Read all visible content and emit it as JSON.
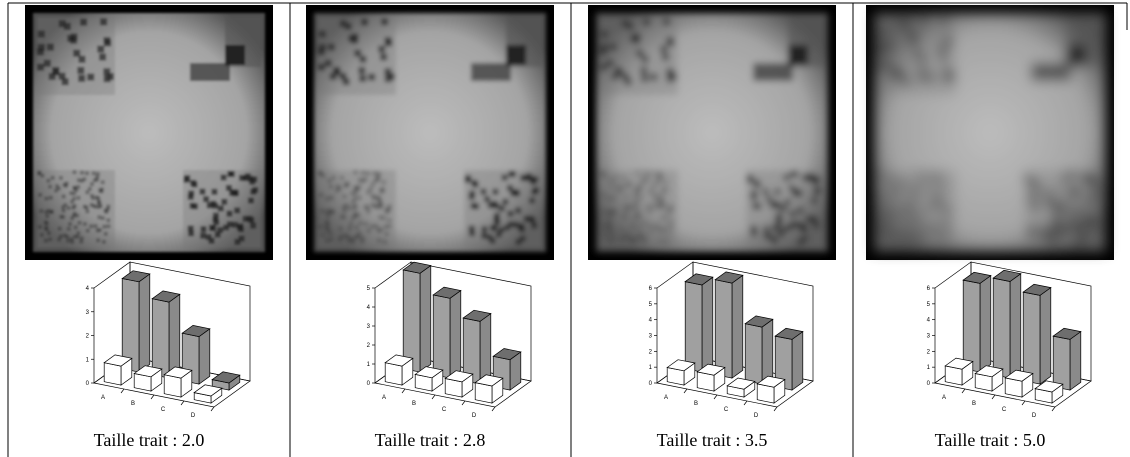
{
  "chart_data": [
    {
      "type": "bar3d",
      "caption": "Taille trait : 2.0",
      "categories": [
        "A",
        "B",
        "C",
        "D"
      ],
      "series": [
        {
          "color": "#a0a0a0",
          "values": [
            3.8,
            3.2,
            2.0,
            0.3
          ]
        },
        {
          "color": "#ffffff",
          "values": [
            0.8,
            0.6,
            0.8,
            0.3
          ]
        }
      ],
      "ylim": [
        0,
        4
      ],
      "yticks": [
        0,
        1,
        2,
        3,
        4
      ]
    },
    {
      "type": "bar3d",
      "caption": "Taille trait : 2.8",
      "categories": [
        "A",
        "B",
        "C",
        "D"
      ],
      "series": [
        {
          "color": "#a0a0a0",
          "values": [
            5.2,
            4.2,
            3.3,
            1.6
          ]
        },
        {
          "color": "#ffffff",
          "values": [
            1.0,
            0.7,
            0.8,
            0.9
          ]
        }
      ],
      "ylim": [
        0,
        5
      ],
      "yticks": [
        0,
        1,
        2,
        3,
        4,
        5
      ]
    },
    {
      "type": "bar3d",
      "caption": "Taille trait : 3.5",
      "categories": [
        "A",
        "B",
        "C",
        "D"
      ],
      "series": [
        {
          "color": "#a0a0a0",
          "values": [
            5.5,
            6.0,
            3.6,
            3.2
          ]
        },
        {
          "color": "#ffffff",
          "values": [
            0.9,
            1.0,
            0.5,
            1.0
          ]
        }
      ],
      "ylim": [
        0,
        6
      ],
      "yticks": [
        0,
        1,
        2,
        3,
        4,
        5,
        6
      ]
    },
    {
      "type": "bar3d",
      "caption": "Taille trait : 5.0",
      "categories": [
        "A",
        "B",
        "C",
        "D"
      ],
      "series": [
        {
          "color": "#a0a0a0",
          "values": [
            5.6,
            6.1,
            5.6,
            3.2
          ]
        },
        {
          "color": "#ffffff",
          "values": [
            1.0,
            0.9,
            1.0,
            0.7
          ]
        }
      ],
      "ylim": [
        0,
        6
      ],
      "yticks": [
        0,
        1,
        2,
        3,
        4,
        5,
        6
      ]
    }
  ]
}
